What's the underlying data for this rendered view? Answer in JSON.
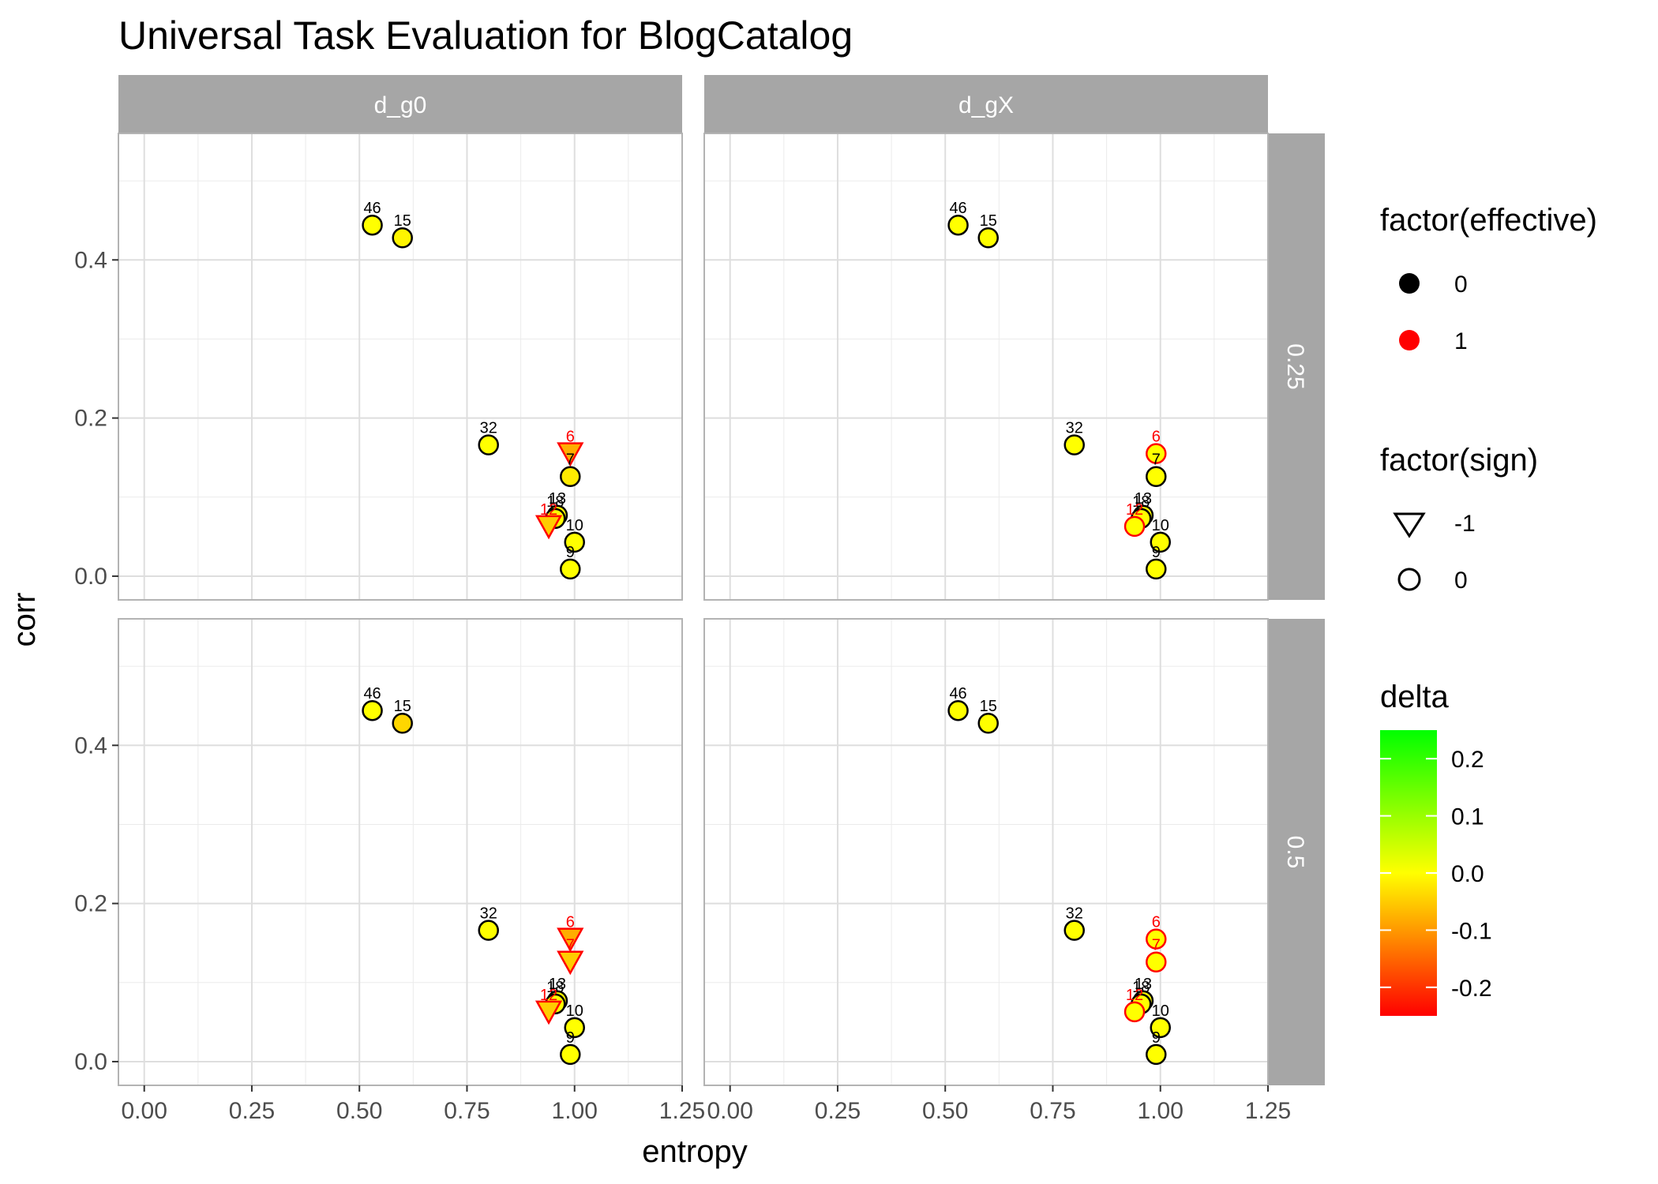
{
  "chart_data": {
    "type": "scatter",
    "title": "Universal Task Evaluation for BlogCatalog",
    "xlabel": "entropy",
    "ylabel": "corr",
    "xlim": [
      -0.06,
      1.25
    ],
    "ylim": [
      -0.03,
      0.56
    ],
    "x_ticks": [
      "0.00",
      "0.25",
      "0.50",
      "0.75",
      "1.00",
      "1.25"
    ],
    "y_ticks": [
      "0.0",
      "0.2",
      "0.4"
    ],
    "grid": true,
    "facet_cols": [
      "d_g0",
      "d_gX"
    ],
    "facet_rows": [
      "0.25",
      "0.5"
    ],
    "panels": [
      {
        "col": "d_g0",
        "row": "0.25",
        "points": [
          {
            "label": "46",
            "x": 0.53,
            "y": 0.444,
            "effective": 0,
            "sign": 0,
            "delta": 0.0
          },
          {
            "label": "15",
            "x": 0.6,
            "y": 0.428,
            "effective": 0,
            "sign": 0,
            "delta": -0.01
          },
          {
            "label": "32",
            "x": 0.8,
            "y": 0.166,
            "effective": 0,
            "sign": 0,
            "delta": 0.0
          },
          {
            "label": "6",
            "x": 0.99,
            "y": 0.155,
            "effective": 1,
            "sign": -1,
            "delta": -0.08
          },
          {
            "label": "7",
            "x": 0.99,
            "y": 0.126,
            "effective": 0,
            "sign": 0,
            "delta": -0.02
          },
          {
            "label": "13",
            "x": 0.96,
            "y": 0.077,
            "effective": 0,
            "sign": 0,
            "delta": 0.0
          },
          {
            "label": "18",
            "x": 0.955,
            "y": 0.073,
            "effective": 0,
            "sign": 0,
            "delta": 0.0
          },
          {
            "label": "12",
            "x": 0.94,
            "y": 0.063,
            "effective": 1,
            "sign": -1,
            "delta": -0.05
          },
          {
            "label": "10",
            "x": 1.0,
            "y": 0.043,
            "effective": 0,
            "sign": 0,
            "delta": 0.0
          },
          {
            "label": "9",
            "x": 0.99,
            "y": 0.009,
            "effective": 0,
            "sign": 0,
            "delta": 0.0
          }
        ]
      },
      {
        "col": "d_gX",
        "row": "0.25",
        "points": [
          {
            "label": "46",
            "x": 0.53,
            "y": 0.444,
            "effective": 0,
            "sign": 0,
            "delta": 0.0
          },
          {
            "label": "15",
            "x": 0.6,
            "y": 0.428,
            "effective": 0,
            "sign": 0,
            "delta": 0.0
          },
          {
            "label": "32",
            "x": 0.8,
            "y": 0.166,
            "effective": 0,
            "sign": 0,
            "delta": 0.0
          },
          {
            "label": "6",
            "x": 0.99,
            "y": 0.155,
            "effective": 1,
            "sign": 0,
            "delta": 0.0
          },
          {
            "label": "7",
            "x": 0.99,
            "y": 0.126,
            "effective": 0,
            "sign": 0,
            "delta": 0.0
          },
          {
            "label": "13",
            "x": 0.96,
            "y": 0.077,
            "effective": 0,
            "sign": 0,
            "delta": 0.0
          },
          {
            "label": "18",
            "x": 0.955,
            "y": 0.073,
            "effective": 0,
            "sign": 0,
            "delta": 0.0
          },
          {
            "label": "12",
            "x": 0.94,
            "y": 0.063,
            "effective": 1,
            "sign": 0,
            "delta": 0.0
          },
          {
            "label": "10",
            "x": 1.0,
            "y": 0.043,
            "effective": 0,
            "sign": 0,
            "delta": 0.0
          },
          {
            "label": "9",
            "x": 0.99,
            "y": 0.009,
            "effective": 0,
            "sign": 0,
            "delta": 0.0
          }
        ]
      },
      {
        "col": "d_g0",
        "row": "0.5",
        "points": [
          {
            "label": "46",
            "x": 0.53,
            "y": 0.444,
            "effective": 0,
            "sign": 0,
            "delta": 0.0
          },
          {
            "label": "15",
            "x": 0.6,
            "y": 0.428,
            "effective": 0,
            "sign": 0,
            "delta": -0.04
          },
          {
            "label": "32",
            "x": 0.8,
            "y": 0.166,
            "effective": 0,
            "sign": 0,
            "delta": 0.0
          },
          {
            "label": "6",
            "x": 0.99,
            "y": 0.155,
            "effective": 1,
            "sign": -1,
            "delta": -0.08
          },
          {
            "label": "7",
            "x": 0.99,
            "y": 0.126,
            "effective": 1,
            "sign": -1,
            "delta": -0.05
          },
          {
            "label": "13",
            "x": 0.96,
            "y": 0.077,
            "effective": 0,
            "sign": 0,
            "delta": 0.0
          },
          {
            "label": "18",
            "x": 0.955,
            "y": 0.073,
            "effective": 0,
            "sign": 0,
            "delta": 0.0
          },
          {
            "label": "12",
            "x": 0.94,
            "y": 0.063,
            "effective": 1,
            "sign": -1,
            "delta": -0.05
          },
          {
            "label": "10",
            "x": 1.0,
            "y": 0.043,
            "effective": 0,
            "sign": 0,
            "delta": 0.0
          },
          {
            "label": "9",
            "x": 0.99,
            "y": 0.009,
            "effective": 0,
            "sign": 0,
            "delta": 0.0
          }
        ]
      },
      {
        "col": "d_gX",
        "row": "0.5",
        "points": [
          {
            "label": "46",
            "x": 0.53,
            "y": 0.444,
            "effective": 0,
            "sign": 0,
            "delta": 0.0
          },
          {
            "label": "15",
            "x": 0.6,
            "y": 0.428,
            "effective": 0,
            "sign": 0,
            "delta": 0.0
          },
          {
            "label": "32",
            "x": 0.8,
            "y": 0.166,
            "effective": 0,
            "sign": 0,
            "delta": 0.0
          },
          {
            "label": "6",
            "x": 0.99,
            "y": 0.155,
            "effective": 1,
            "sign": 0,
            "delta": 0.0
          },
          {
            "label": "7",
            "x": 0.99,
            "y": 0.126,
            "effective": 1,
            "sign": 0,
            "delta": 0.0
          },
          {
            "label": "13",
            "x": 0.96,
            "y": 0.077,
            "effective": 0,
            "sign": 0,
            "delta": 0.0
          },
          {
            "label": "18",
            "x": 0.955,
            "y": 0.073,
            "effective": 0,
            "sign": 0,
            "delta": 0.0
          },
          {
            "label": "12",
            "x": 0.94,
            "y": 0.063,
            "effective": 1,
            "sign": 0,
            "delta": 0.0
          },
          {
            "label": "10",
            "x": 1.0,
            "y": 0.043,
            "effective": 0,
            "sign": 0,
            "delta": 0.0
          },
          {
            "label": "9",
            "x": 0.99,
            "y": 0.009,
            "effective": 0,
            "sign": 0,
            "delta": 0.0
          }
        ]
      }
    ],
    "legends": {
      "effective": {
        "title": "factor(effective)",
        "entries": [
          {
            "label": "0",
            "color": "#000000"
          },
          {
            "label": "1",
            "color": "#ff0000"
          }
        ]
      },
      "sign": {
        "title": "factor(sign)",
        "entries": [
          {
            "label": "-1",
            "shape": "triangle-down"
          },
          {
            "label": "0",
            "shape": "circle"
          }
        ]
      },
      "delta": {
        "title": "delta",
        "range": [
          -0.25,
          0.25
        ],
        "ticks": [
          "0.2",
          "0.1",
          "0.0",
          "-0.1",
          "-0.2"
        ],
        "tick_values": [
          0.2,
          0.1,
          0.0,
          -0.1,
          -0.2
        ],
        "colors": [
          "#ff0000",
          "#ffff00",
          "#00ff00"
        ]
      }
    },
    "legend_position": "right",
    "colors": {
      "panel_grid": "#ebebeb",
      "strip_bg": "#a6a6a6",
      "panel_border": "#b3b3b3"
    }
  }
}
